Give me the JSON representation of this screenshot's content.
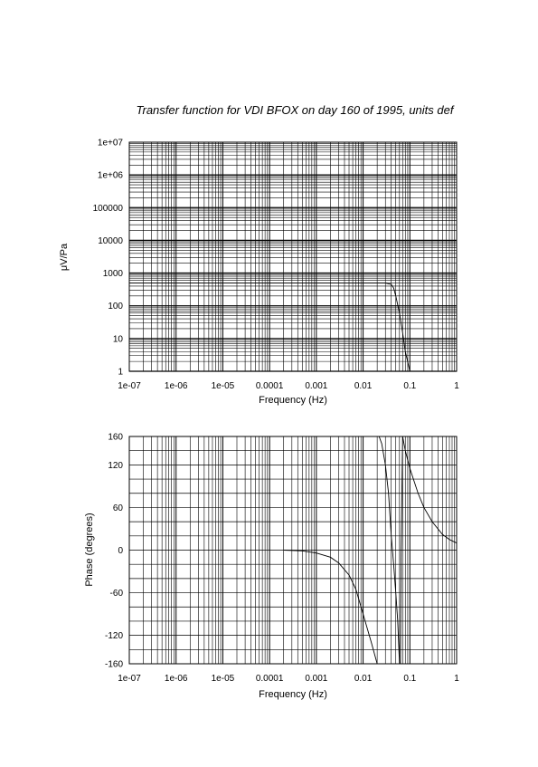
{
  "title": "Transfer function for VDI BFOX on day 160 of 1995, units def",
  "chart_data": [
    {
      "type": "line",
      "name": "amplitude",
      "xlabel": "Frequency (Hz)",
      "ylabel": "μV/Pa",
      "xscale": "log",
      "yscale": "log",
      "xlim": [
        1e-07,
        1
      ],
      "ylim": [
        1,
        10000000
      ],
      "grid": true,
      "xticks": [
        "1e-07",
        "1e-06",
        "1e-05",
        "0.0001",
        "0.001",
        "0.01",
        "0.1",
        "1"
      ],
      "yticks": [
        "1",
        "10",
        "100",
        "1000",
        "10000",
        "100000",
        "1e+06",
        "1e+07"
      ],
      "x": [
        1e-07,
        0.01,
        0.03,
        0.04,
        0.045,
        0.05,
        0.06,
        0.07,
        0.08,
        0.1
      ],
      "y": [
        500,
        500,
        495,
        450,
        350,
        200,
        60,
        15,
        4,
        1
      ]
    },
    {
      "type": "line",
      "name": "phase",
      "xlabel": "Frequency (Hz)",
      "ylabel": "Phase (degrees)",
      "xscale": "log",
      "xlim": [
        1e-07,
        1
      ],
      "ylim": [
        -160,
        160
      ],
      "grid": true,
      "xticks": [
        "1e-07",
        "1e-06",
        "1e-05",
        "0.0001",
        "0.001",
        "0.01",
        "0.1",
        "1"
      ],
      "yticks": [
        "-160",
        "-120",
        "-60",
        "0",
        "60",
        "120",
        "160"
      ],
      "segments": [
        {
          "x": [
            0.0002,
            0.0005,
            0.001,
            0.002,
            0.003,
            0.005,
            0.007,
            0.01,
            0.015,
            0.02
          ],
          "y": [
            0,
            -1,
            -4,
            -10,
            -18,
            -35,
            -55,
            -90,
            -130,
            -160
          ]
        },
        {
          "x": [
            0.022,
            0.025,
            0.03,
            0.035,
            0.04
          ],
          "y": [
            160,
            150,
            120,
            80,
            20
          ]
        },
        {
          "x": [
            0.04,
            0.045,
            0.05,
            0.055,
            0.06
          ],
          "y": [
            20,
            -20,
            -60,
            -100,
            -160
          ]
        },
        {
          "x": [
            0.063,
            0.065
          ],
          "y": [
            -160,
            0
          ]
        },
        {
          "x": [
            0.065,
            0.07
          ],
          "y": [
            0,
            160
          ]
        },
        {
          "x": [
            0.07,
            0.08,
            0.1,
            0.15,
            0.2,
            0.3,
            0.5,
            0.7,
            1.0
          ],
          "y": [
            160,
            140,
            115,
            80,
            60,
            40,
            22,
            15,
            10
          ]
        }
      ]
    }
  ]
}
